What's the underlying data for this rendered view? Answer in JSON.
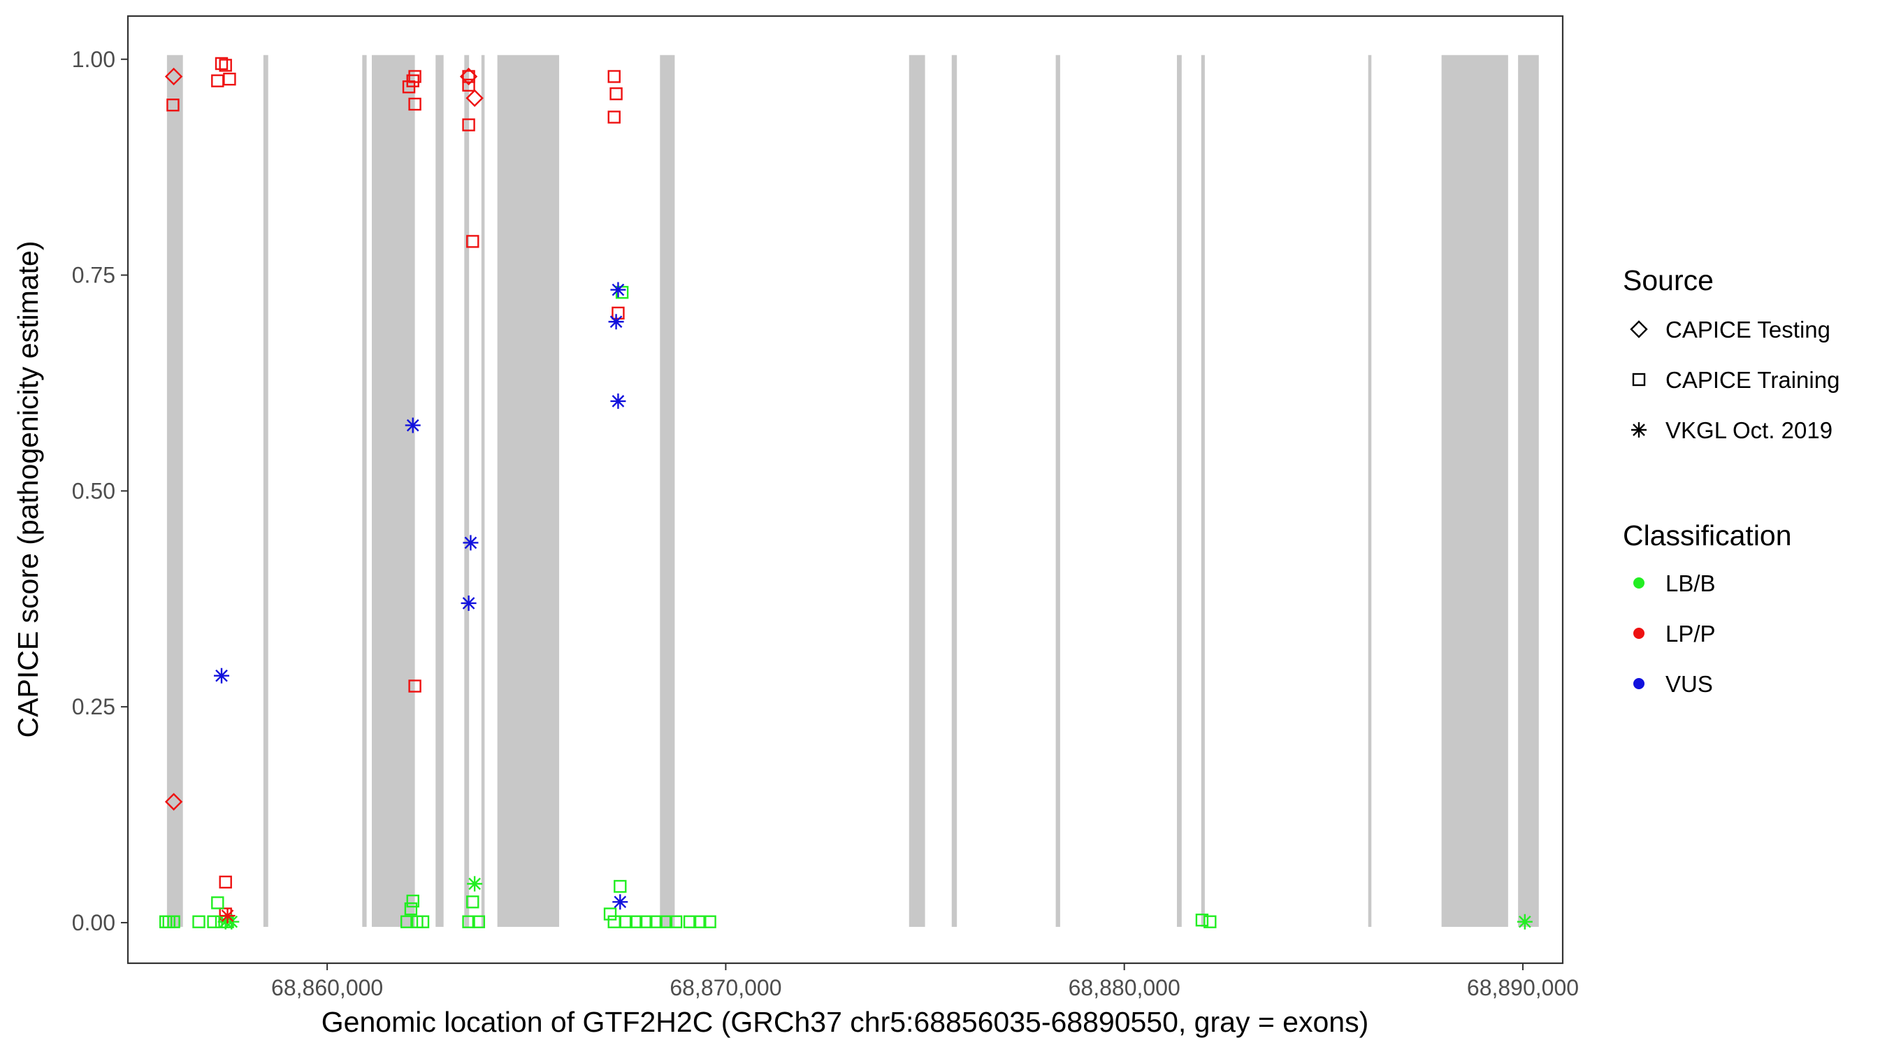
{
  "chart_data": {
    "type": "scatter",
    "xlabel": "Genomic location of GTF2H2C (GRCh37 chr5:68856035-68890550, gray = exons)",
    "ylabel": "CAPICE score (pathogenicity estimate)",
    "xlim": [
      68855000,
      68891000
    ],
    "ylim": [
      -0.047,
      1.05
    ],
    "x_ticks": [
      68860000,
      68870000,
      68880000,
      68890000
    ],
    "x_tick_labels": [
      "68,860,000",
      "68,870,000",
      "68,880,000",
      "68,890,000"
    ],
    "y_ticks": [
      0,
      0.25,
      0.5,
      0.75,
      1.0
    ],
    "y_tick_labels": [
      "0.00",
      "0.25",
      "0.50",
      "0.75",
      "1.00"
    ],
    "grid": false,
    "legend_position": "right",
    "exons": [
      [
        68855980,
        68856380
      ],
      [
        68858400,
        68858520
      ],
      [
        68860880,
        68860990
      ],
      [
        68861120,
        68862200
      ],
      [
        68862720,
        68862920
      ],
      [
        68863440,
        68863560
      ],
      [
        68863870,
        68863950
      ],
      [
        68864270,
        68865820
      ],
      [
        68868350,
        68868720
      ],
      [
        68874600,
        68875000
      ],
      [
        68875670,
        68875800
      ],
      [
        68878280,
        68878390
      ],
      [
        68881320,
        68881440
      ],
      [
        68881930,
        68882020
      ],
      [
        68886120,
        68886200
      ],
      [
        68887960,
        68889630
      ],
      [
        68889880,
        68890400
      ]
    ],
    "colors": {
      "LB/B": "#22ee22",
      "LP/P": "#ee1111",
      "VUS": "#1111dd"
    },
    "legend": {
      "source_title": "Source",
      "source_items": [
        {
          "label": "CAPICE Testing",
          "shape": "diamond"
        },
        {
          "label": "CAPICE Training",
          "shape": "square"
        },
        {
          "label": "VKGL Oct. 2019",
          "shape": "asterisk"
        }
      ],
      "class_title": "Classification",
      "class_items": [
        {
          "label": "LB/B",
          "color": "#22ee22"
        },
        {
          "label": "LP/P",
          "color": "#ee1111"
        },
        {
          "label": "VUS",
          "color": "#1111dd"
        }
      ]
    },
    "series": [
      {
        "shape": "diamond",
        "class": "LP/P",
        "points": [
          [
            68856150,
            0.98
          ],
          [
            68856150,
            0.14
          ],
          [
            68863700,
            0.955
          ],
          [
            68863550,
            0.98
          ]
        ]
      },
      {
        "shape": "square",
        "class": "LP/P",
        "points": [
          [
            68856130,
            0.947
          ],
          [
            68857250,
            0.975
          ],
          [
            68857350,
            0.995
          ],
          [
            68857450,
            0.993
          ],
          [
            68857550,
            0.977
          ],
          [
            68857450,
            0.047
          ],
          [
            68857450,
            0.01
          ],
          [
            68862050,
            0.968
          ],
          [
            68862150,
            0.975
          ],
          [
            68862200,
            0.98
          ],
          [
            68862200,
            0.948
          ],
          [
            68862200,
            0.274
          ],
          [
            68863550,
            0.98
          ],
          [
            68863550,
            0.97
          ],
          [
            68863550,
            0.924
          ],
          [
            68863650,
            0.789
          ],
          [
            68867200,
            0.98
          ],
          [
            68867250,
            0.96
          ],
          [
            68867200,
            0.933
          ],
          [
            68867300,
            0.706
          ]
        ]
      },
      {
        "shape": "square",
        "class": "LB/B",
        "points": [
          [
            68855950,
            0.001
          ],
          [
            68856030,
            0.001
          ],
          [
            68856150,
            0.001
          ],
          [
            68856780,
            0.001
          ],
          [
            68857250,
            0.023
          ],
          [
            68857150,
            0.001
          ],
          [
            68857350,
            0.001
          ],
          [
            68857500,
            0.001
          ],
          [
            68862000,
            0.001
          ],
          [
            68862100,
            0.016
          ],
          [
            68862150,
            0.025
          ],
          [
            68862250,
            0.001
          ],
          [
            68862400,
            0.001
          ],
          [
            68863550,
            0.001
          ],
          [
            68863650,
            0.024
          ],
          [
            68863800,
            0.001
          ],
          [
            68867100,
            0.01
          ],
          [
            68867350,
            0.042
          ],
          [
            68867400,
            0.73
          ],
          [
            68867200,
            0.001
          ],
          [
            68867500,
            0.001
          ],
          [
            68867750,
            0.001
          ],
          [
            68868000,
            0.001
          ],
          [
            68868250,
            0.001
          ],
          [
            68868500,
            0.001
          ],
          [
            68868750,
            0.001
          ],
          [
            68869100,
            0.001
          ],
          [
            68869350,
            0.001
          ],
          [
            68869600,
            0.001
          ],
          [
            68881950,
            0.003
          ],
          [
            68882150,
            0.001
          ]
        ]
      },
      {
        "shape": "asterisk",
        "class": "VUS",
        "points": [
          [
            68857350,
            0.286
          ],
          [
            68862150,
            0.576
          ],
          [
            68863600,
            0.44
          ],
          [
            68863550,
            0.37
          ],
          [
            68867300,
            0.733
          ],
          [
            68867250,
            0.696
          ],
          [
            68867300,
            0.604
          ],
          [
            68867350,
            0.024
          ]
        ]
      },
      {
        "shape": "asterisk",
        "class": "LB/B",
        "points": [
          [
            68857450,
            0.001
          ],
          [
            68857600,
            0.001
          ],
          [
            68863700,
            0.045
          ],
          [
            68890050,
            0.001
          ]
        ]
      },
      {
        "shape": "asterisk",
        "class": "LP/P",
        "points": [
          [
            68857500,
            0.008
          ]
        ]
      }
    ]
  }
}
